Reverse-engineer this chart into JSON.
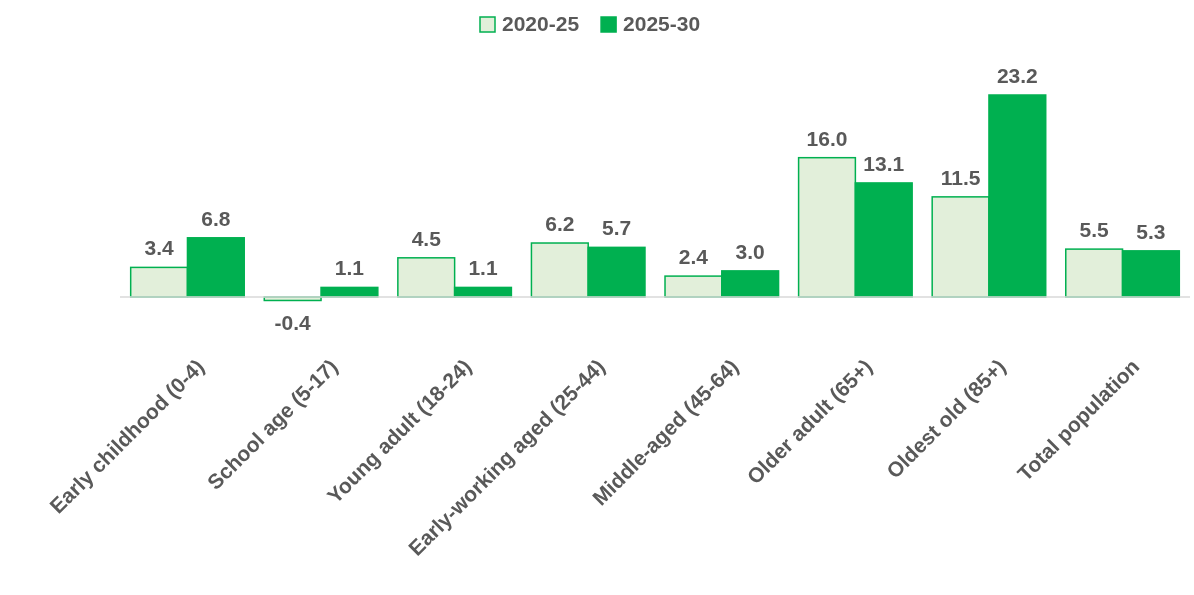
{
  "chart_data": {
    "type": "bar",
    "categories": [
      "Early childhood (0-4)",
      "School age (5-17)",
      "Young adult (18-24)",
      "Early-working aged (25-44)",
      "Middle-aged (45-64)",
      "Older adult (65+)",
      "Oldest old (85+)",
      "Total population"
    ],
    "series": [
      {
        "name": "2020-25",
        "color": "#e2efda",
        "values": [
          3.4,
          -0.4,
          4.5,
          6.2,
          2.4,
          16.0,
          11.5,
          5.5
        ],
        "value_labels": [
          "3.4",
          "-0.4",
          "4.5",
          "6.2",
          "2.4",
          "16.0",
          "11.5",
          "5.5"
        ]
      },
      {
        "name": "2025-30",
        "color": "#00b050",
        "values": [
          6.8,
          1.1,
          1.1,
          5.7,
          3.0,
          13.1,
          23.2,
          5.3
        ],
        "value_labels": [
          "6.8",
          "1.1",
          "1.1",
          "5.7",
          "3.0",
          "13.1",
          "23.2",
          "5.3"
        ]
      }
    ],
    "legend": "top"
  }
}
